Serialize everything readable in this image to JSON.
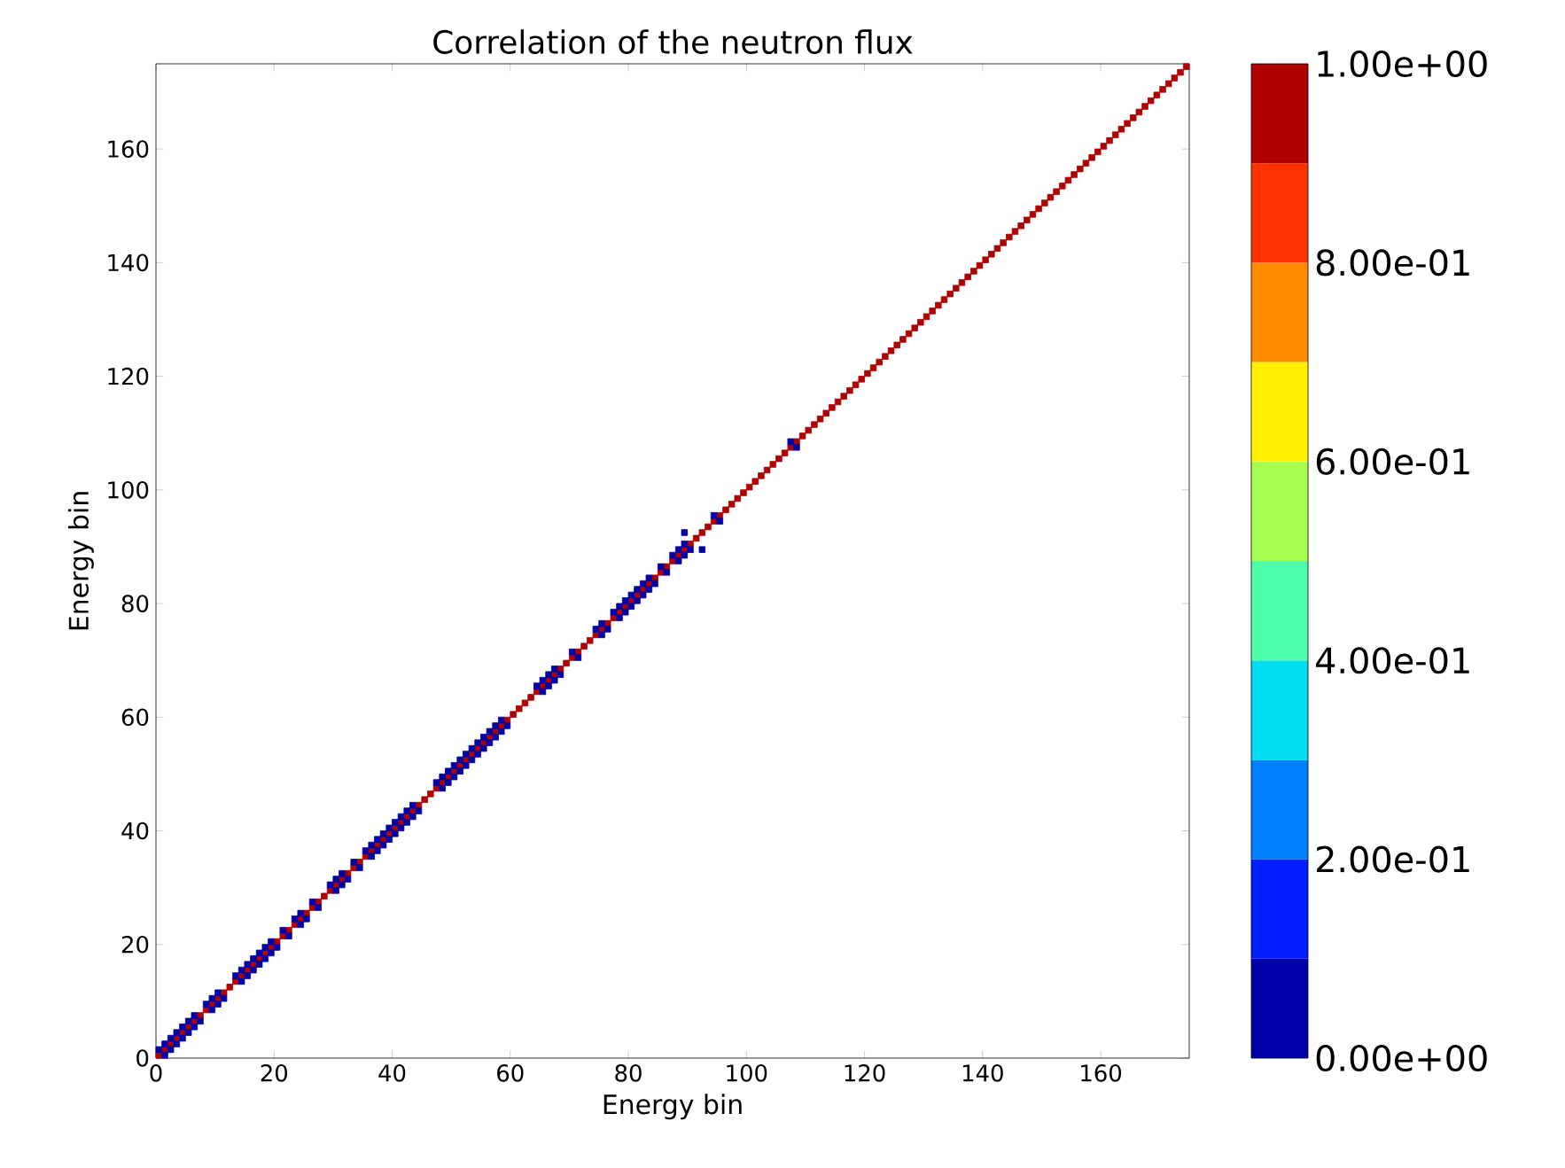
{
  "chart_data": {
    "type": "scatter",
    "title": "Correlation of the neutron flux",
    "xlabel": "Energy bin",
    "ylabel": "Energy bin",
    "xlim": [
      0,
      175
    ],
    "ylim": [
      0,
      175
    ],
    "xticks": [
      0,
      20,
      40,
      60,
      80,
      100,
      120,
      140,
      160
    ],
    "yticks": [
      0,
      20,
      40,
      60,
      80,
      100,
      120,
      140,
      160
    ],
    "marker": "square",
    "clim": [
      0,
      1
    ],
    "cticks": [
      {
        "value": 0,
        "label": "0.00e+00"
      },
      {
        "value": 0.2,
        "label": "2.00e-01"
      },
      {
        "value": 0.4,
        "label": "4.00e-01"
      },
      {
        "value": 0.6,
        "label": "6.00e-01"
      },
      {
        "value": 0.8,
        "label": "8.00e-01"
      },
      {
        "value": 1,
        "label": "1.00e+00"
      }
    ],
    "series": [
      {
        "x": [
          0.5,
          1.5,
          2.5,
          3.5,
          4.5,
          5.5,
          6.5,
          7.5,
          8.5,
          9.5,
          10.5,
          11.5,
          12.5,
          13.5,
          14.5,
          15.5,
          16.5,
          17.5,
          18.5,
          19.5,
          20.5,
          21.5,
          22.5,
          23.5,
          24.5,
          25.5,
          26.5,
          27.5,
          28.5,
          29.5,
          30.5,
          31.5,
          32.5,
          33.5,
          34.5,
          35.5,
          36.5,
          37.5,
          38.5,
          39.5,
          40.5,
          41.5,
          42.5,
          43.5,
          44.5,
          45.5,
          46.5,
          47.5,
          48.5,
          49.5,
          50.5,
          51.5,
          52.5,
          53.5,
          54.5,
          55.5,
          56.5,
          57.5,
          58.5,
          59.5,
          60.5,
          61.5,
          62.5,
          63.5,
          64.5,
          65.5,
          66.5,
          67.5,
          68.5,
          69.5,
          70.5,
          71.5,
          72.5,
          73.5,
          74.5,
          75.5,
          76.5,
          77.5,
          78.5,
          79.5,
          80.5,
          81.5,
          82.5,
          83.5,
          84.5,
          85.5,
          86.5,
          87.5,
          88.5,
          89.5,
          90.5,
          91.5,
          92.5,
          93.5,
          94.5,
          95.5,
          96.5,
          97.5,
          98.5,
          99.5,
          100.5,
          101.5,
          102.5,
          103.5,
          104.5,
          105.5,
          106.5,
          107.5,
          108.5,
          109.5,
          110.5,
          111.5,
          112.5,
          113.5,
          114.5,
          115.5,
          116.5,
          117.5,
          118.5,
          119.5,
          120.5,
          121.5,
          122.5,
          123.5,
          124.5,
          125.5,
          126.5,
          127.5,
          128.5,
          129.5,
          130.5,
          131.5,
          132.5,
          133.5,
          134.5,
          135.5,
          136.5,
          137.5,
          138.5,
          139.5,
          140.5,
          141.5,
          142.5,
          143.5,
          144.5,
          145.5,
          146.5,
          147.5,
          148.5,
          149.5,
          150.5,
          151.5,
          152.5,
          153.5,
          154.5,
          155.5,
          156.5,
          157.5,
          158.5,
          159.5,
          160.5,
          161.5,
          162.5,
          163.5,
          164.5,
          165.5,
          166.5,
          167.5,
          168.5,
          169.5,
          170.5,
          171.5,
          172.5,
          173.5,
          174.5
        ],
        "values": [
          0.5,
          1.5,
          2.5,
          3.5,
          4.5,
          5.5,
          6.5,
          7.5,
          8.5,
          9.5,
          10.5,
          11.5,
          12.5,
          13.5,
          14.5,
          15.5,
          16.5,
          17.5,
          18.5,
          19.5,
          20.5,
          21.5,
          22.5,
          23.5,
          24.5,
          25.5,
          26.5,
          27.5,
          28.5,
          29.5,
          30.5,
          31.5,
          32.5,
          33.5,
          34.5,
          35.5,
          36.5,
          37.5,
          38.5,
          39.5,
          40.5,
          41.5,
          42.5,
          43.5,
          44.5,
          45.5,
          46.5,
          47.5,
          48.5,
          49.5,
          50.5,
          51.5,
          52.5,
          53.5,
          54.5,
          55.5,
          56.5,
          57.5,
          58.5,
          59.5,
          60.5,
          61.5,
          62.5,
          63.5,
          64.5,
          65.5,
          66.5,
          67.5,
          68.5,
          69.5,
          70.5,
          71.5,
          72.5,
          73.5,
          74.5,
          75.5,
          76.5,
          77.5,
          78.5,
          79.5,
          80.5,
          81.5,
          82.5,
          83.5,
          84.5,
          85.5,
          86.5,
          87.5,
          88.5,
          89.5,
          90.5,
          91.5,
          92.5,
          93.5,
          94.5,
          95.5,
          96.5,
          97.5,
          98.5,
          99.5,
          100.5,
          101.5,
          102.5,
          103.5,
          104.5,
          105.5,
          106.5,
          107.5,
          108.5,
          109.5,
          110.5,
          111.5,
          112.5,
          113.5,
          114.5,
          115.5,
          116.5,
          117.5,
          118.5,
          119.5,
          120.5,
          121.5,
          122.5,
          123.5,
          124.5,
          125.5,
          126.5,
          127.5,
          128.5,
          129.5,
          130.5,
          131.5,
          132.5,
          133.5,
          134.5,
          135.5,
          136.5,
          137.5,
          138.5,
          139.5,
          140.5,
          141.5,
          142.5,
          143.5,
          144.5,
          145.5,
          146.5,
          147.5,
          148.5,
          149.5,
          150.5,
          151.5,
          152.5,
          153.5,
          154.5,
          155.5,
          156.5,
          157.5,
          158.5,
          159.5,
          160.5,
          161.5,
          162.5,
          163.5,
          164.5,
          165.5,
          166.5,
          167.5,
          168.5,
          169.5,
          170.5,
          171.5,
          172.5,
          173.5,
          174.5
        ],
        "cvalues": [
          1,
          1,
          1,
          1,
          1,
          1,
          1,
          1,
          1,
          1,
          1,
          1,
          1,
          1,
          1,
          1,
          1,
          1,
          1,
          1,
          1,
          1,
          1,
          1,
          1,
          1,
          1,
          1,
          1,
          1,
          1,
          1,
          1,
          1,
          1,
          1,
          1,
          1,
          1,
          1,
          1,
          1,
          1,
          1,
          1,
          1,
          1,
          1,
          1,
          1,
          1,
          1,
          1,
          1,
          1,
          1,
          1,
          1,
          1,
          1,
          1,
          1,
          1,
          1,
          1,
          1,
          1,
          1,
          1,
          1,
          1,
          1,
          1,
          1,
          1,
          1,
          1,
          1,
          1,
          1,
          1,
          1,
          1,
          1,
          1,
          1,
          1,
          1,
          1,
          1,
          1,
          1,
          1,
          1,
          1,
          1,
          1,
          1,
          1,
          1,
          1,
          1,
          1,
          1,
          1,
          1,
          1,
          1,
          1,
          1,
          1,
          1,
          1,
          1,
          1,
          1,
          1,
          1,
          1,
          1,
          1,
          1,
          1,
          1,
          1,
          1,
          1,
          1,
          1,
          1,
          1,
          1,
          1,
          1,
          1,
          1,
          1,
          1,
          1,
          1,
          1,
          1,
          1,
          1,
          1,
          1,
          1,
          1,
          1,
          1,
          1,
          1,
          1,
          1,
          1,
          1,
          1,
          1,
          1,
          1,
          1,
          1,
          1,
          1,
          1,
          1,
          1,
          1,
          1,
          1,
          1,
          1,
          1,
          1,
          1
        ]
      },
      {
        "x": [
          0.5,
          1.5,
          1.5,
          2.5,
          2.5,
          3.5,
          3.5,
          4.5,
          4.5,
          5.5,
          5.5,
          6.5,
          6.5,
          7.5,
          8.5,
          9.5,
          9.5,
          10.5,
          10.5,
          11.5,
          13.5,
          14.5,
          14.5,
          15.5,
          15.5,
          16.5,
          16.5,
          17.5,
          17.5,
          18.5,
          18.5,
          19.5,
          19.5,
          20.5,
          21.5,
          22.5,
          23.5,
          24.5,
          24.5,
          25.5,
          26.5,
          27.5,
          29.5,
          30.5,
          30.5,
          31.5,
          31.5,
          32.5,
          33.5,
          34.5,
          35.5,
          36.5,
          36.5,
          37.5,
          37.5,
          38.5,
          38.5,
          39.5,
          39.5,
          40.5,
          40.5,
          41.5,
          41.5,
          42.5,
          42.5,
          43.5,
          43.5,
          44.5,
          47.5,
          48.5,
          48.5,
          49.5,
          49.5,
          50.5,
          50.5,
          51.5,
          51.5,
          52.5,
          52.5,
          53.5,
          53.5,
          54.5,
          54.5,
          55.5,
          55.5,
          56.5,
          56.5,
          57.5,
          57.5,
          58.5,
          58.5,
          59.5,
          64.5,
          65.5,
          65.5,
          66.5,
          66.5,
          67.5,
          67.5,
          68.5,
          70.5,
          71.5,
          74.5,
          75.5,
          75.5,
          76.5,
          77.5,
          78.5,
          78.5,
          79.5,
          79.5,
          80.5,
          80.5,
          81.5,
          81.5,
          82.5,
          82.5,
          83.5,
          83.5,
          84.5,
          85.5,
          86.5,
          87.5,
          88.5,
          88.5,
          89.5,
          89.5,
          90.5,
          94.5,
          95.5,
          107.5,
          108.5,
          89.5,
          92.5
        ],
        "values": [
          1.5,
          0.5,
          2.5,
          1.5,
          3.5,
          2.5,
          4.5,
          3.5,
          5.5,
          4.5,
          6.5,
          5.5,
          7.5,
          6.5,
          9.5,
          8.5,
          10.5,
          9.5,
          11.5,
          10.5,
          14.5,
          13.5,
          15.5,
          14.5,
          16.5,
          15.5,
          17.5,
          16.5,
          18.5,
          17.5,
          19.5,
          18.5,
          20.5,
          19.5,
          22.5,
          21.5,
          24.5,
          23.5,
          25.5,
          24.5,
          27.5,
          26.5,
          30.5,
          29.5,
          31.5,
          30.5,
          32.5,
          31.5,
          34.5,
          33.5,
          36.5,
          35.5,
          37.5,
          36.5,
          38.5,
          37.5,
          39.5,
          38.5,
          40.5,
          39.5,
          41.5,
          40.5,
          42.5,
          41.5,
          43.5,
          42.5,
          44.5,
          43.5,
          48.5,
          47.5,
          49.5,
          48.5,
          50.5,
          49.5,
          51.5,
          50.5,
          52.5,
          51.5,
          53.5,
          52.5,
          54.5,
          53.5,
          55.5,
          54.5,
          56.5,
          55.5,
          57.5,
          56.5,
          58.5,
          57.5,
          59.5,
          58.5,
          65.5,
          64.5,
          66.5,
          65.5,
          67.5,
          66.5,
          68.5,
          67.5,
          71.5,
          70.5,
          75.5,
          74.5,
          76.5,
          75.5,
          78.5,
          77.5,
          79.5,
          78.5,
          80.5,
          79.5,
          81.5,
          80.5,
          82.5,
          81.5,
          83.5,
          82.5,
          84.5,
          83.5,
          86.5,
          85.5,
          88.5,
          87.5,
          89.5,
          88.5,
          90.5,
          89.5,
          95.5,
          94.5,
          108.5,
          107.5,
          92.5,
          89.5
        ],
        "cvalues": [
          0,
          0,
          0,
          0,
          0,
          0,
          0,
          0,
          0,
          0,
          0,
          0,
          0,
          0,
          0,
          0,
          0,
          0,
          0,
          0,
          0,
          0,
          0,
          0,
          0,
          0,
          0,
          0,
          0,
          0,
          0,
          0,
          0,
          0,
          0,
          0,
          0,
          0,
          0,
          0,
          0,
          0,
          0,
          0,
          0,
          0,
          0,
          0,
          0,
          0,
          0,
          0,
          0,
          0,
          0,
          0,
          0,
          0,
          0,
          0,
          0,
          0,
          0,
          0,
          0,
          0,
          0,
          0,
          0,
          0,
          0,
          0,
          0,
          0,
          0,
          0,
          0,
          0,
          0,
          0,
          0,
          0,
          0,
          0,
          0,
          0,
          0,
          0,
          0,
          0,
          0,
          0,
          0,
          0,
          0,
          0,
          0,
          0,
          0,
          0,
          0,
          0,
          0,
          0,
          0,
          0,
          0,
          0,
          0,
          0,
          0,
          0,
          0,
          0,
          0,
          0,
          0,
          0,
          0,
          0,
          0,
          0,
          0,
          0,
          0,
          0,
          0,
          0,
          0,
          0,
          0,
          0,
          0,
          0
        ]
      }
    ]
  }
}
